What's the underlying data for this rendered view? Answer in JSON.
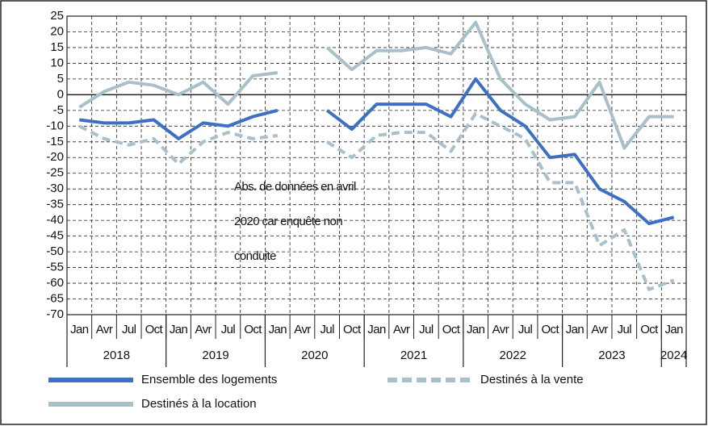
{
  "chart_data": {
    "type": "line",
    "categories": [
      "Jan",
      "Avr",
      "Jul",
      "Oct",
      "Jan",
      "Avr",
      "Jul",
      "Oct",
      "Jan",
      "Avr",
      "Jul",
      "Oct",
      "Jan",
      "Avr",
      "Jul",
      "Oct",
      "Jan",
      "Avr",
      "Jul",
      "Oct",
      "Jan",
      "Avr",
      "Jul",
      "Oct",
      "Jan"
    ],
    "years": [
      "2018",
      "2019",
      "2020",
      "2021",
      "2022",
      "2023",
      "2024"
    ],
    "series": [
      {
        "name": "Ensemble des logements",
        "color": "#3d70c4",
        "dashed": false,
        "values": [
          -8,
          -9,
          -9,
          -8,
          -14,
          -9,
          -10,
          -7,
          -5,
          null,
          -5,
          -11,
          -3,
          -3,
          -3,
          -7,
          5,
          -5,
          -10,
          -20,
          -19,
          -30,
          -34,
          -41,
          -39
        ]
      },
      {
        "name": "Destinés à la vente",
        "color": "#a9bfca",
        "dashed": true,
        "values": [
          -10,
          -14,
          -16,
          -14,
          -22,
          -15,
          -12,
          -14,
          -13,
          null,
          -15,
          -20,
          -13,
          -12,
          -12,
          -18,
          -6,
          -10,
          -14,
          -28,
          -28,
          -48,
          -43,
          -62,
          -59
        ]
      },
      {
        "name": "Destinés à la location",
        "color": "#a9bfca",
        "dashed": false,
        "values": [
          -4,
          1,
          4,
          3,
          0,
          4,
          -3,
          6,
          7,
          null,
          15,
          8,
          14,
          14,
          15,
          13,
          23,
          5,
          -3,
          -8,
          -7,
          4,
          -17,
          -7,
          -7
        ]
      }
    ],
    "annotation": [
      "Abs. de données en avril",
      "2020 car enquête non",
      "conduite"
    ],
    "ylim": [
      -70,
      25
    ],
    "yticks": [
      -70,
      -65,
      -60,
      -55,
      -50,
      -45,
      -40,
      -35,
      -30,
      -25,
      -20,
      -15,
      -10,
      -5,
      0,
      5,
      10,
      15,
      20,
      25
    ],
    "grid": true
  }
}
